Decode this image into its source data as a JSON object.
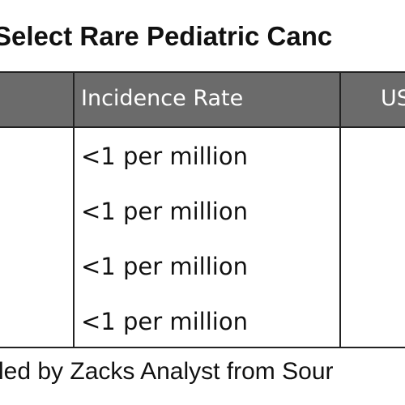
{
  "title": "Select Rare Pediatric Canc",
  "table": {
    "headers": [
      "",
      "Incidence Rate",
      "US"
    ],
    "rows": [
      {
        "incidence_rate": "<1 per million"
      },
      {
        "incidence_rate": "<1 per million"
      },
      {
        "incidence_rate": "<1 per million"
      },
      {
        "incidence_rate": "<1 per million"
      }
    ]
  },
  "footer": "led by Zacks Analyst from Sour"
}
